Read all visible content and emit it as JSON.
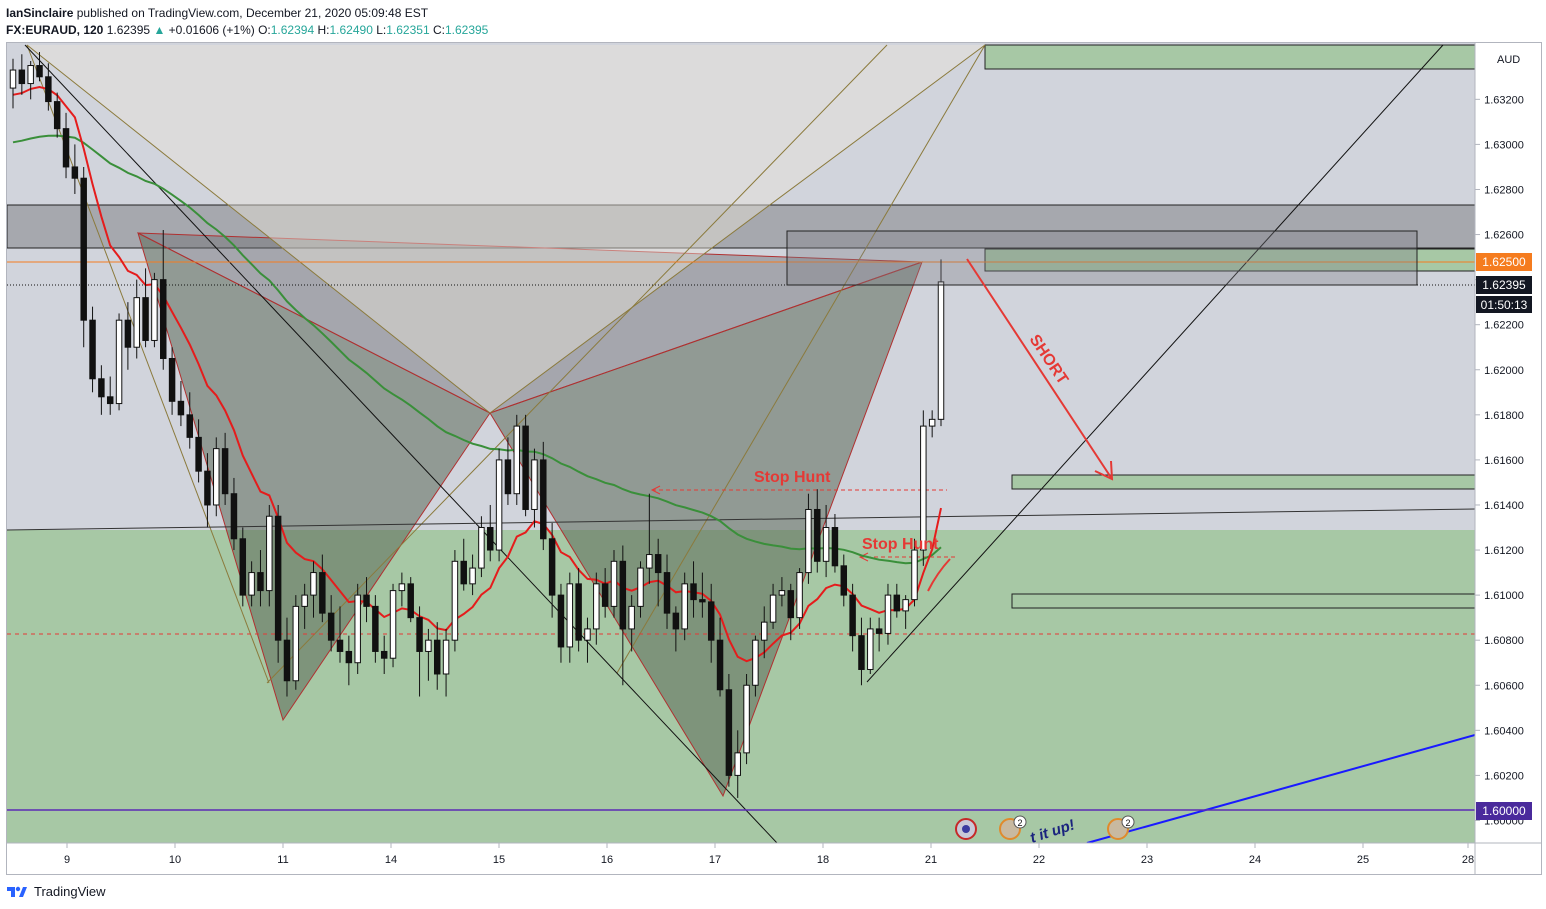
{
  "header": {
    "author": "IanSinclaire",
    "published_text": "published on TradingView.com, December 21, 2020 05:09:48 EST",
    "symbol": "FX:EURAUD, 120",
    "last": "1.62395",
    "change": "+0.01606 (+1%)",
    "o_label": "O:",
    "o_value": "1.62394",
    "h_label": "H:",
    "h_value": "1.62490",
    "l_label": "L:",
    "l_value": "1.62351",
    "c_label": "C:",
    "c_value": "1.62395"
  },
  "footer": {
    "brand": "TradingView",
    "brand_icon": "tradingview-logo-icon"
  },
  "colors": {
    "price_tag": "#f57c1f",
    "ma_fast": "#e51c1c",
    "ma_slow": "#3a8f3a",
    "pattern_fill": "#6b6b6b",
    "zone_fill": "#9fc59f",
    "trend_blue": "#1a1aff"
  },
  "chart_data": {
    "type": "candlestick",
    "currency": "AUD",
    "y_axis": {
      "ylim": [
        1.599,
        1.6345
      ],
      "ticks": [
        "1.60000",
        "1.60200",
        "1.60400",
        "1.60600",
        "1.60800",
        "1.61000",
        "1.61200",
        "1.61400",
        "1.61600",
        "1.61800",
        "1.62000",
        "1.62200",
        "1.62400",
        "1.62600",
        "1.62800",
        "1.63000",
        "1.63200"
      ],
      "current_price": "1.62395",
      "countdown": "01:50:13",
      "level_tags": [
        "1.62500",
        "1.60000"
      ]
    },
    "x_axis": {
      "ticks": [
        "9",
        "10",
        "11",
        "14",
        "15",
        "16",
        "17",
        "18",
        "21",
        "22",
        "23",
        "24",
        "25",
        "28"
      ]
    },
    "candles": [
      [
        1.6325,
        1.6338,
        1.6316,
        1.6333
      ],
      [
        1.6333,
        1.634,
        1.6322,
        1.6327
      ],
      [
        1.6327,
        1.6337,
        1.632,
        1.6335
      ],
      [
        1.6335,
        1.6341,
        1.6328,
        1.633
      ],
      [
        1.633,
        1.6336,
        1.6315,
        1.6319
      ],
      [
        1.6319,
        1.6323,
        1.6303,
        1.6307
      ],
      [
        1.6307,
        1.6314,
        1.6285,
        1.629
      ],
      [
        1.629,
        1.63,
        1.6278,
        1.6285
      ],
      [
        1.6285,
        1.629,
        1.621,
        1.6222
      ],
      [
        1.6222,
        1.6228,
        1.619,
        1.6196
      ],
      [
        1.6196,
        1.6202,
        1.618,
        1.6188
      ],
      [
        1.6188,
        1.6197,
        1.618,
        1.6185
      ],
      [
        1.6185,
        1.6225,
        1.6182,
        1.6222
      ],
      [
        1.6222,
        1.623,
        1.62,
        1.621
      ],
      [
        1.621,
        1.624,
        1.6205,
        1.6232
      ],
      [
        1.6232,
        1.6245,
        1.621,
        1.6213
      ],
      [
        1.6213,
        1.6243,
        1.621,
        1.624
      ],
      [
        1.624,
        1.6262,
        1.62,
        1.6205
      ],
      [
        1.6205,
        1.621,
        1.618,
        1.6186
      ],
      [
        1.6186,
        1.6195,
        1.6175,
        1.618
      ],
      [
        1.618,
        1.619,
        1.6165,
        1.617
      ],
      [
        1.617,
        1.6178,
        1.615,
        1.6155
      ],
      [
        1.6155,
        1.6163,
        1.613,
        1.614
      ],
      [
        1.614,
        1.617,
        1.6135,
        1.6165
      ],
      [
        1.6165,
        1.6172,
        1.614,
        1.6145
      ],
      [
        1.6145,
        1.6152,
        1.612,
        1.6125
      ],
      [
        1.6125,
        1.613,
        1.6095,
        1.61
      ],
      [
        1.61,
        1.6115,
        1.6095,
        1.611
      ],
      [
        1.611,
        1.612,
        1.6095,
        1.6102
      ],
      [
        1.6102,
        1.614,
        1.6095,
        1.6135
      ],
      [
        1.6135,
        1.614,
        1.607,
        1.608
      ],
      [
        1.608,
        1.609,
        1.6055,
        1.6062
      ],
      [
        1.6062,
        1.61,
        1.6058,
        1.6095
      ],
      [
        1.6095,
        1.6105,
        1.6085,
        1.61
      ],
      [
        1.61,
        1.6115,
        1.609,
        1.611
      ],
      [
        1.611,
        1.6118,
        1.6088,
        1.6092
      ],
      [
        1.6092,
        1.61,
        1.6075,
        1.608
      ],
      [
        1.608,
        1.6095,
        1.607,
        1.6075
      ],
      [
        1.6075,
        1.6082,
        1.606,
        1.607
      ],
      [
        1.607,
        1.6105,
        1.6065,
        1.61
      ],
      [
        1.61,
        1.6108,
        1.6088,
        1.6095
      ],
      [
        1.6095,
        1.61,
        1.607,
        1.6075
      ],
      [
        1.6075,
        1.6082,
        1.6065,
        1.6072
      ],
      [
        1.6072,
        1.6105,
        1.6068,
        1.6102
      ],
      [
        1.6102,
        1.611,
        1.6095,
        1.6105
      ],
      [
        1.6105,
        1.6108,
        1.6088,
        1.609
      ],
      [
        1.609,
        1.6095,
        1.6055,
        1.6075
      ],
      [
        1.6075,
        1.6085,
        1.6062,
        1.608
      ],
      [
        1.608,
        1.6088,
        1.6058,
        1.6065
      ],
      [
        1.6065,
        1.6085,
        1.6055,
        1.608
      ],
      [
        1.608,
        1.612,
        1.6075,
        1.6115
      ],
      [
        1.6115,
        1.6125,
        1.6102,
        1.6105
      ],
      [
        1.6105,
        1.6118,
        1.61,
        1.6112
      ],
      [
        1.6112,
        1.6135,
        1.6108,
        1.613
      ],
      [
        1.613,
        1.614,
        1.6115,
        1.612
      ],
      [
        1.612,
        1.6165,
        1.6115,
        1.616
      ],
      [
        1.616,
        1.617,
        1.614,
        1.6145
      ],
      [
        1.6145,
        1.618,
        1.614,
        1.6175
      ],
      [
        1.6175,
        1.618,
        1.6135,
        1.6138
      ],
      [
        1.6138,
        1.6165,
        1.613,
        1.616
      ],
      [
        1.616,
        1.6168,
        1.612,
        1.6125
      ],
      [
        1.6125,
        1.6132,
        1.609,
        1.61
      ],
      [
        1.61,
        1.6105,
        1.607,
        1.6077
      ],
      [
        1.6077,
        1.611,
        1.607,
        1.6105
      ],
      [
        1.6105,
        1.6112,
        1.6075,
        1.608
      ],
      [
        1.608,
        1.609,
        1.607,
        1.6085
      ],
      [
        1.6085,
        1.611,
        1.6078,
        1.6105
      ],
      [
        1.6105,
        1.6112,
        1.609,
        1.6095
      ],
      [
        1.6095,
        1.612,
        1.609,
        1.6115
      ],
      [
        1.6115,
        1.6122,
        1.606,
        1.6085
      ],
      [
        1.6085,
        1.61,
        1.6075,
        1.6095
      ],
      [
        1.6095,
        1.6115,
        1.609,
        1.6112
      ],
      [
        1.6112,
        1.6145,
        1.6105,
        1.6118
      ],
      [
        1.6118,
        1.6125,
        1.6095,
        1.611
      ],
      [
        1.611,
        1.6118,
        1.6085,
        1.6092
      ],
      [
        1.6092,
        1.6095,
        1.6075,
        1.6085
      ],
      [
        1.6085,
        1.611,
        1.608,
        1.6105
      ],
      [
        1.6105,
        1.6115,
        1.609,
        1.6098
      ],
      [
        1.6098,
        1.611,
        1.609,
        1.6097
      ],
      [
        1.6097,
        1.6105,
        1.607,
        1.608
      ],
      [
        1.608,
        1.609,
        1.6055,
        1.6058
      ],
      [
        1.6058,
        1.6065,
        1.6015,
        1.602
      ],
      [
        1.602,
        1.604,
        1.601,
        1.603
      ],
      [
        1.603,
        1.6065,
        1.6025,
        1.606
      ],
      [
        1.606,
        1.6082,
        1.6055,
        1.608
      ],
      [
        1.608,
        1.6095,
        1.6072,
        1.6088
      ],
      [
        1.6088,
        1.6105,
        1.6085,
        1.61
      ],
      [
        1.61,
        1.6108,
        1.6095,
        1.6102
      ],
      [
        1.6102,
        1.6105,
        1.608,
        1.609
      ],
      [
        1.609,
        1.6112,
        1.6085,
        1.611
      ],
      [
        1.611,
        1.6145,
        1.6105,
        1.6138
      ],
      [
        1.6138,
        1.6147,
        1.611,
        1.6115
      ],
      [
        1.6115,
        1.614,
        1.6108,
        1.613
      ],
      [
        1.613,
        1.6136,
        1.611,
        1.6113
      ],
      [
        1.6113,
        1.6118,
        1.6095,
        1.61
      ],
      [
        1.61,
        1.6105,
        1.6075,
        1.6082
      ],
      [
        1.6082,
        1.609,
        1.606,
        1.6067
      ],
      [
        1.6067,
        1.609,
        1.6065,
        1.6085
      ],
      [
        1.6085,
        1.609,
        1.6075,
        1.6083
      ],
      [
        1.6083,
        1.6105,
        1.6078,
        1.61
      ],
      [
        1.61,
        1.6105,
        1.609,
        1.6093
      ],
      [
        1.6093,
        1.61,
        1.6085,
        1.6098
      ],
      [
        1.6098,
        1.6125,
        1.6095,
        1.612
      ],
      [
        1.612,
        1.6182,
        1.6113,
        1.6175
      ],
      [
        1.6175,
        1.6182,
        1.617,
        1.6178
      ],
      [
        1.6178,
        1.6249,
        1.6175,
        1.6239
      ]
    ],
    "annotations": [
      "Stop Hunt",
      "Stop Hunt",
      "SHORT",
      "t it up!"
    ],
    "event_markers": [
      "2",
      "2"
    ]
  }
}
